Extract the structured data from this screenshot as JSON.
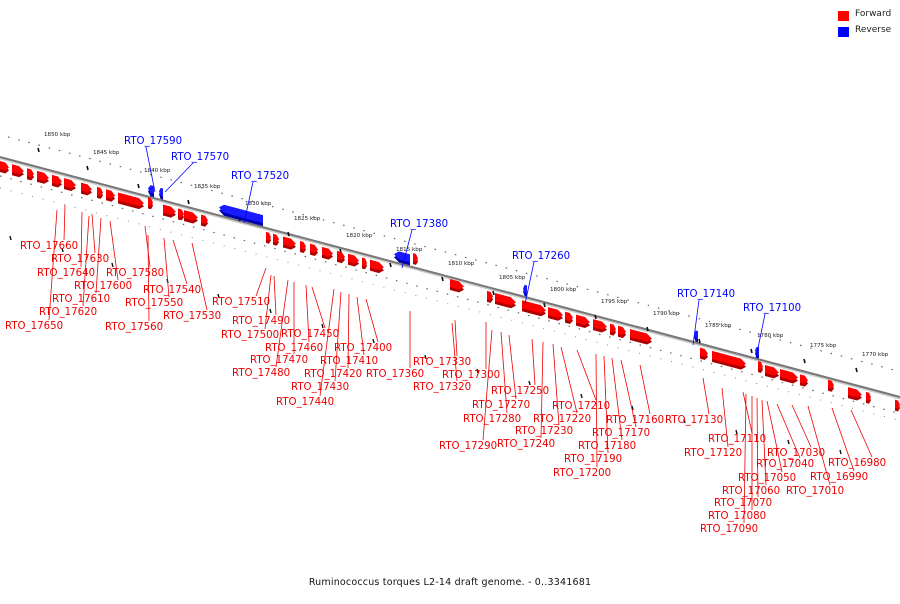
{
  "title": "Ruminococcus torques L2-14 draft genome. - 0..3341681",
  "legend": [
    {
      "label": "Forward",
      "color": "#ff0000"
    },
    {
      "label": "Reverse",
      "color": "#0000ff"
    }
  ],
  "colors": {
    "forward": "#ff0000",
    "reverse": "#1a1aff",
    "axis": "#777777",
    "tick": "#444444"
  },
  "scale": {
    "units": "kbp",
    "ticks": [
      1850,
      1845,
      1840,
      1835,
      1830,
      1825,
      1820,
      1815,
      1810,
      1805,
      1800,
      1795,
      1790,
      1785,
      1780,
      1775,
      1770
    ]
  },
  "labeled_genes": [
    {
      "name": "RTO_17660",
      "strand": "forward"
    },
    {
      "name": "RTO_17650",
      "strand": "forward"
    },
    {
      "name": "RTO_17640",
      "strand": "forward"
    },
    {
      "name": "RTO_17630",
      "strand": "forward"
    },
    {
      "name": "RTO_17620",
      "strand": "forward"
    },
    {
      "name": "RTO_17610",
      "strand": "forward"
    },
    {
      "name": "RTO_17600",
      "strand": "forward"
    },
    {
      "name": "RTO_17590",
      "strand": "reverse"
    },
    {
      "name": "RTO_17580",
      "strand": "forward"
    },
    {
      "name": "RTO_17570",
      "strand": "reverse"
    },
    {
      "name": "RTO_17560",
      "strand": "forward"
    },
    {
      "name": "RTO_17550",
      "strand": "forward"
    },
    {
      "name": "RTO_17540",
      "strand": "forward"
    },
    {
      "name": "RTO_17530",
      "strand": "forward"
    },
    {
      "name": "RTO_17520",
      "strand": "reverse"
    },
    {
      "name": "RTO_17510",
      "strand": "forward"
    },
    {
      "name": "RTO_17500",
      "strand": "forward"
    },
    {
      "name": "RTO_17490",
      "strand": "forward"
    },
    {
      "name": "RTO_17480",
      "strand": "forward"
    },
    {
      "name": "RTO_17470",
      "strand": "forward"
    },
    {
      "name": "RTO_17460",
      "strand": "forward"
    },
    {
      "name": "RTO_17450",
      "strand": "forward"
    },
    {
      "name": "RTO_17440",
      "strand": "forward"
    },
    {
      "name": "RTO_17430",
      "strand": "forward"
    },
    {
      "name": "RTO_17420",
      "strand": "forward"
    },
    {
      "name": "RTO_17410",
      "strand": "forward"
    },
    {
      "name": "RTO_17400",
      "strand": "forward"
    },
    {
      "name": "RTO_17380",
      "strand": "reverse"
    },
    {
      "name": "RTO_17360",
      "strand": "forward"
    },
    {
      "name": "RTO_17330",
      "strand": "forward"
    },
    {
      "name": "RTO_17320",
      "strand": "forward"
    },
    {
      "name": "RTO_17300",
      "strand": "forward"
    },
    {
      "name": "RTO_17290",
      "strand": "forward"
    },
    {
      "name": "RTO_17280",
      "strand": "forward"
    },
    {
      "name": "RTO_17270",
      "strand": "forward"
    },
    {
      "name": "RTO_17260",
      "strand": "reverse"
    },
    {
      "name": "RTO_17250",
      "strand": "forward"
    },
    {
      "name": "RTO_17240",
      "strand": "forward"
    },
    {
      "name": "RTO_17230",
      "strand": "forward"
    },
    {
      "name": "RTO_17220",
      "strand": "forward"
    },
    {
      "name": "RTO_17210",
      "strand": "forward"
    },
    {
      "name": "RTO_17200",
      "strand": "forward"
    },
    {
      "name": "RTO_17190",
      "strand": "forward"
    },
    {
      "name": "RTO_17180",
      "strand": "forward"
    },
    {
      "name": "RTO_17170",
      "strand": "forward"
    },
    {
      "name": "RTO_17160",
      "strand": "forward"
    },
    {
      "name": "RTO_17140",
      "strand": "reverse"
    },
    {
      "name": "RTO_17130",
      "strand": "forward"
    },
    {
      "name": "RTO_17120",
      "strand": "forward"
    },
    {
      "name": "RTO_17110",
      "strand": "forward"
    },
    {
      "name": "RTO_17100",
      "strand": "reverse"
    },
    {
      "name": "RTO_17090",
      "strand": "forward"
    },
    {
      "name": "RTO_17080",
      "strand": "forward"
    },
    {
      "name": "RTO_17070",
      "strand": "forward"
    },
    {
      "name": "RTO_17060",
      "strand": "forward"
    },
    {
      "name": "RTO_17050",
      "strand": "forward"
    },
    {
      "name": "RTO_17040",
      "strand": "forward"
    },
    {
      "name": "RTO_17030",
      "strand": "forward"
    },
    {
      "name": "RTO_17010",
      "strand": "forward"
    },
    {
      "name": "RTO_16990",
      "strand": "forward"
    },
    {
      "name": "RTO_16980",
      "strand": "forward"
    }
  ]
}
